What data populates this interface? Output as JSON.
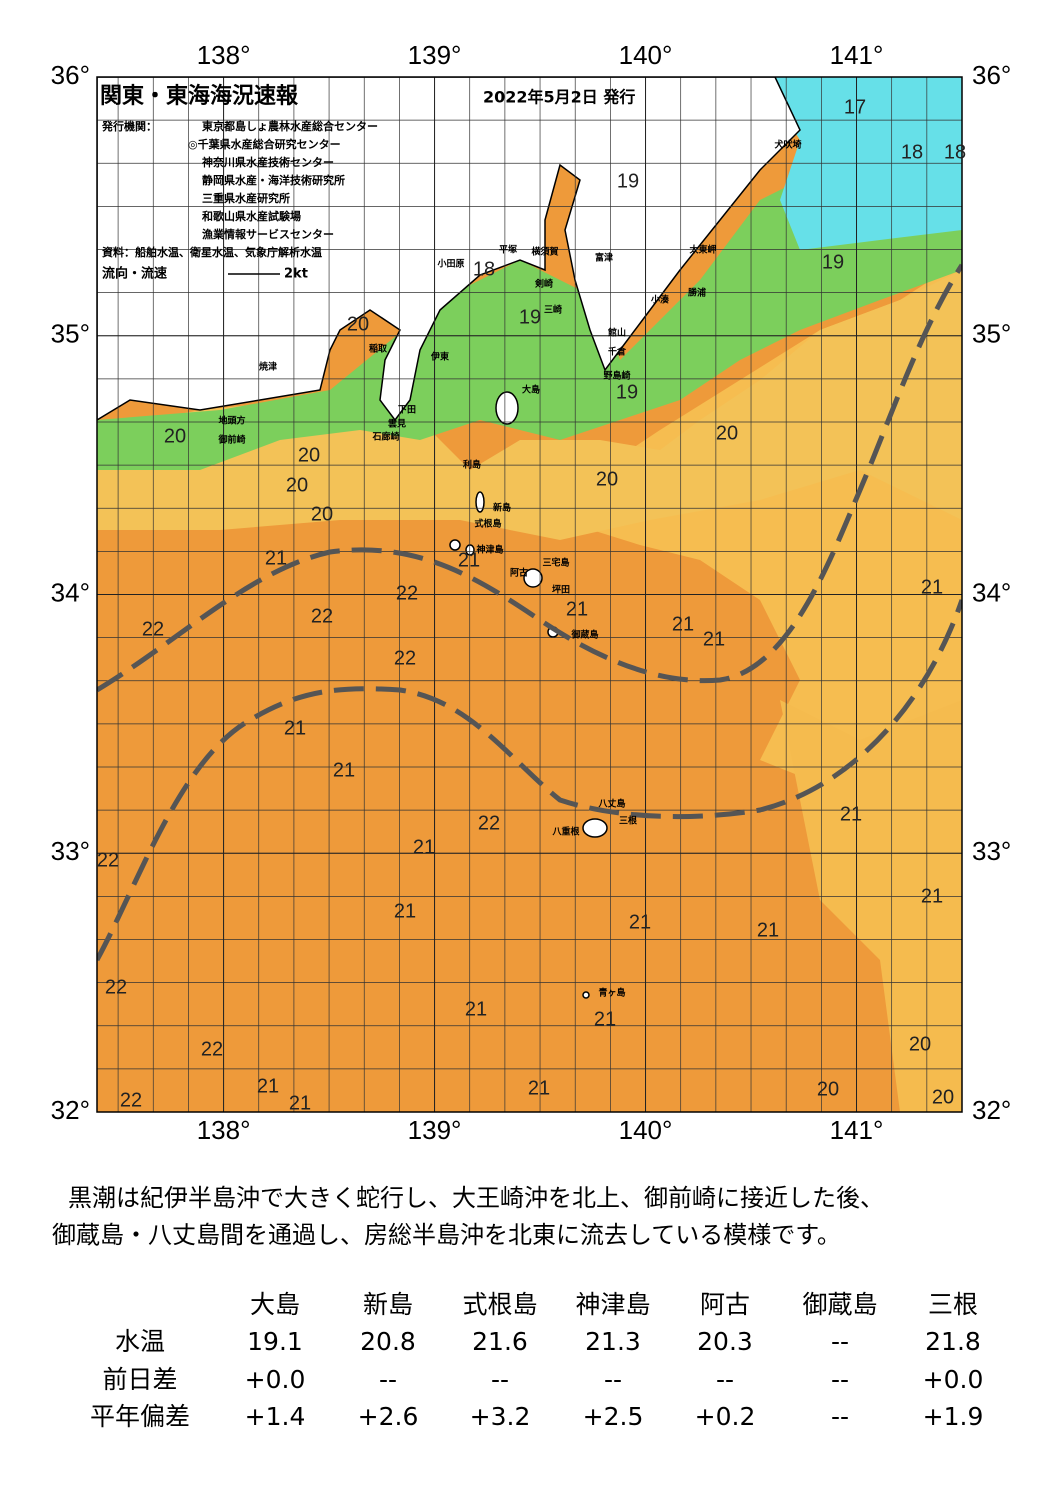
{
  "map": {
    "title": "関東・東海海況速報",
    "date": "2022年5月2日 発行",
    "issuer_label": "発行機関：",
    "issuers": [
      "東京都島しょ農林水産総合センター",
      "◎千葉県水産総合研究センター",
      "神奈川県水産技術センター",
      "静岡県水産・海洋技術研究所",
      "三重県水産研究所",
      "和歌山県水産試験場",
      "漁業情報サービスセンター"
    ],
    "source": "資料：船舶水温、衛星水温、気象庁解析水温",
    "flow_legend": "流向・流速",
    "flow_unit": "2kt",
    "lon_range": [
      137.4,
      141.5
    ],
    "lat_range": [
      32,
      36
    ],
    "lon_ticks": [
      {
        "value": 138,
        "label": "138°"
      },
      {
        "value": 139,
        "label": "139°"
      },
      {
        "value": 140,
        "label": "140°"
      },
      {
        "value": 141,
        "label": "141°"
      }
    ],
    "lat_ticks": [
      {
        "value": 36,
        "label": "36°"
      },
      {
        "value": 35,
        "label": "35°"
      },
      {
        "value": 34,
        "label": "34°"
      },
      {
        "value": 33,
        "label": "33°"
      },
      {
        "value": 32,
        "label": "32°"
      }
    ],
    "temperature_labels": [
      17,
      18,
      18,
      19,
      19,
      18,
      19,
      20,
      19,
      20,
      20,
      20,
      20,
      20,
      20,
      21,
      21,
      21,
      22,
      21,
      22,
      22,
      21,
      21,
      22,
      21,
      21,
      21,
      22,
      21,
      22,
      21,
      21,
      21,
      21,
      22,
      21,
      21,
      22,
      20,
      21,
      21,
      20,
      22,
      21,
      20
    ],
    "place_names": [
      "犬吠埼",
      "太東岬",
      "小湊",
      "勝浦",
      "館山",
      "千倉",
      "野島崎",
      "富津",
      "平塚",
      "横須賀",
      "剣崎",
      "三崎",
      "小田原",
      "伊東",
      "稲取",
      "下田",
      "雲見",
      "石廊崎",
      "焼津",
      "地頭方",
      "御前崎",
      "大島",
      "利島",
      "新島",
      "式根島",
      "神津島",
      "三宅島",
      "阿古",
      "坪田",
      "御蔵島",
      "八丈島",
      "三根",
      "八重根",
      "青ヶ島"
    ]
  },
  "summary": [
    "黒潮は紀伊半島沖で大きく蛇行し、大王崎沖を北上、御前崎に接近した後、",
    "御蔵島・八丈島間を通過し、房総半島沖を北東に流去している模様です。"
  ],
  "table": {
    "columns": [
      "大島",
      "新島",
      "式根島",
      "神津島",
      "阿古",
      "御蔵島",
      "三根"
    ],
    "rows": [
      {
        "label": "水温",
        "cells": [
          "19.1",
          "20.8",
          "21.6",
          "21.3",
          "20.3",
          "--",
          "21.8"
        ]
      },
      {
        "label": "前日差",
        "cells": [
          "+0.0",
          "--",
          "--",
          "--",
          "--",
          "--",
          "+0.0"
        ]
      },
      {
        "label": "平年偏差",
        "cells": [
          "+1.4",
          "+2.6",
          "+3.2",
          "+2.5",
          "+0.2",
          "--",
          "+1.9"
        ]
      }
    ]
  }
}
